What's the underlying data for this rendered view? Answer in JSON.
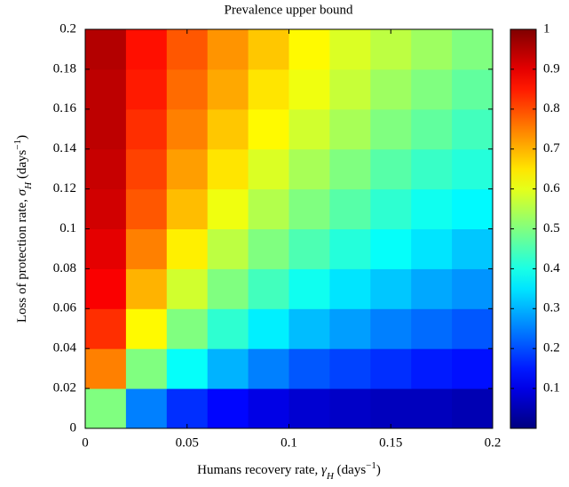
{
  "chart_data": {
    "type": "heatmap",
    "title": "Prevalence upper bound",
    "x_label": [
      "Humans recovery rate, ",
      "γ",
      "H",
      " (days",
      "−1",
      ")"
    ],
    "y_label": [
      "Loss of protection rate, ",
      "σ",
      "H",
      " (days",
      "−1",
      ")"
    ],
    "colormap": "jet",
    "xbins": [
      0,
      0.02,
      0.04,
      0.06,
      0.08,
      0.1,
      0.12,
      0.14,
      0.16,
      0.18,
      0.2
    ],
    "ybins": [
      0,
      0.02,
      0.04,
      0.06,
      0.08,
      0.1,
      0.12,
      0.14,
      0.16,
      0.18,
      0.2
    ],
    "z": [
      [
        0.5,
        0.25,
        0.17,
        0.13,
        0.1,
        0.08,
        0.07,
        0.06,
        0.06,
        0.05
      ],
      [
        0.75,
        0.5,
        0.38,
        0.3,
        0.25,
        0.21,
        0.19,
        0.17,
        0.15,
        0.14
      ],
      [
        0.83,
        0.63,
        0.5,
        0.42,
        0.36,
        0.31,
        0.28,
        0.25,
        0.23,
        0.21
      ],
      [
        0.88,
        0.7,
        0.58,
        0.5,
        0.44,
        0.39,
        0.35,
        0.32,
        0.29,
        0.27
      ],
      [
        0.9,
        0.75,
        0.64,
        0.56,
        0.5,
        0.45,
        0.41,
        0.38,
        0.35,
        0.32
      ],
      [
        0.92,
        0.79,
        0.69,
        0.61,
        0.55,
        0.5,
        0.46,
        0.42,
        0.39,
        0.37
      ],
      [
        0.93,
        0.81,
        0.72,
        0.65,
        0.59,
        0.54,
        0.5,
        0.46,
        0.43,
        0.41
      ],
      [
        0.94,
        0.83,
        0.75,
        0.68,
        0.63,
        0.58,
        0.54,
        0.5,
        0.47,
        0.44
      ],
      [
        0.94,
        0.85,
        0.77,
        0.71,
        0.65,
        0.61,
        0.57,
        0.53,
        0.5,
        0.47
      ],
      [
        0.95,
        0.86,
        0.79,
        0.73,
        0.68,
        0.63,
        0.59,
        0.56,
        0.53,
        0.5
      ]
    ],
    "xlim": [
      0,
      0.2
    ],
    "xticks": [
      0,
      0.05,
      0.1,
      0.15,
      0.2
    ],
    "ylim": [
      0,
      0.2
    ],
    "yticks": [
      0,
      0.02,
      0.04,
      0.06,
      0.08,
      0.1,
      0.12,
      0.14,
      0.16,
      0.18,
      0.2
    ],
    "clim": [
      0,
      1
    ],
    "cticks": [
      0.1,
      0.2,
      0.3,
      0.4,
      0.5,
      0.6,
      0.7,
      0.8,
      0.9,
      1
    ]
  }
}
